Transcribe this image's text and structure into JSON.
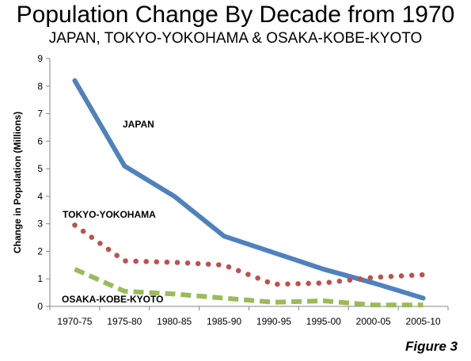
{
  "chart_data": {
    "type": "line",
    "title": "Population Change By Decade from 1970",
    "subtitle": "JAPAN, TOKYO-YOKOHAMA & OSAKA-KOBE-KYOTO",
    "xlabel": "",
    "ylabel": "Change in Population (Millions)",
    "categories": [
      "1970-75",
      "1975-80",
      "1980-85",
      "1985-90",
      "1990-95",
      "1995-00",
      "2000-05",
      "2005-10"
    ],
    "ylim": [
      0,
      9
    ],
    "yticks": [
      "0",
      "1",
      "2",
      "3",
      "4",
      "5",
      "6",
      "7",
      "8",
      "9"
    ],
    "grid": false,
    "series": [
      {
        "name": "JAPAN",
        "values": [
          8.2,
          5.1,
          4.0,
          2.55,
          1.95,
          1.35,
          0.85,
          0.3
        ],
        "color": "#4f81bd",
        "style": "solid"
      },
      {
        "name": "TOKYO-YOKOHAMA",
        "values": [
          2.95,
          1.65,
          1.6,
          1.5,
          0.8,
          0.85,
          1.05,
          1.15
        ],
        "color": "#c0504d",
        "style": "dotted"
      },
      {
        "name": "OSAKA-KOBE-KYOTO",
        "values": [
          1.35,
          0.55,
          0.45,
          0.3,
          0.15,
          0.2,
          0.05,
          0.05
        ],
        "color": "#9bbb59",
        "style": "dashed"
      }
    ]
  },
  "figure_label": "Figure 3"
}
